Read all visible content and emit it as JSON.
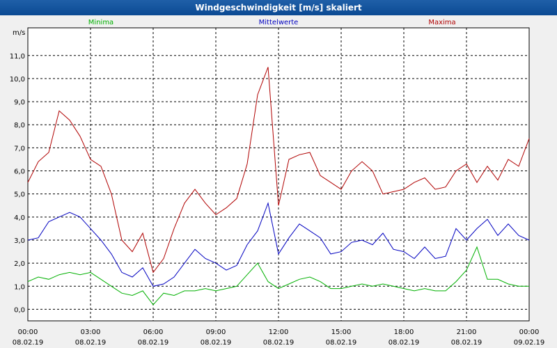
{
  "window": {
    "title": "Windgeschwindigkeit [m/s] skaliert"
  },
  "chart_data": {
    "type": "line",
    "title": "Windgeschwindigkeit [m/s] skaliert",
    "ylabel": "m/s",
    "ylim": [
      -0.5,
      12.2
    ],
    "xlim": [
      0,
      24
    ],
    "grid": true,
    "legend_position": "top",
    "y_ticks": [
      "0,0",
      "1,0",
      "2,0",
      "3,0",
      "4,0",
      "5,0",
      "6,0",
      "7,0",
      "8,0",
      "9,0",
      "10,0",
      "11,0"
    ],
    "x_ticks": [
      {
        "time": "00:00",
        "date": "08.02.19"
      },
      {
        "time": "03:00",
        "date": "08.02.19"
      },
      {
        "time": "06:00",
        "date": "08.02.19"
      },
      {
        "time": "09:00",
        "date": "08.02.19"
      },
      {
        "time": "12:00",
        "date": "08.02.19"
      },
      {
        "time": "15:00",
        "date": "08.02.19"
      },
      {
        "time": "18:00",
        "date": "08.02.19"
      },
      {
        "time": "21:00",
        "date": "08.02.19"
      },
      {
        "time": "00:00",
        "date": "09.02.19"
      }
    ],
    "series": [
      {
        "name": "Minima",
        "color": "#00b000",
        "x": [
          0,
          0.5,
          1,
          1.5,
          2,
          2.5,
          3,
          3.5,
          4,
          4.5,
          5,
          5.5,
          6,
          6.5,
          7,
          7.5,
          8,
          8.5,
          9,
          9.5,
          10,
          10.5,
          11,
          11.5,
          12,
          12.5,
          13,
          13.5,
          14,
          14.5,
          15,
          15.5,
          16,
          16.5,
          17,
          17.5,
          18,
          18.5,
          19,
          19.5,
          20,
          20.5,
          21,
          21.5,
          22,
          22.5,
          23,
          23.5,
          24
        ],
        "values": [
          1.2,
          1.4,
          1.3,
          1.5,
          1.6,
          1.5,
          1.6,
          1.3,
          1.0,
          0.7,
          0.6,
          0.8,
          0.2,
          0.7,
          0.6,
          0.8,
          0.8,
          0.9,
          0.8,
          0.9,
          1.0,
          1.5,
          2.0,
          1.2,
          0.9,
          1.1,
          1.3,
          1.4,
          1.2,
          0.9,
          0.9,
          1.0,
          1.1,
          1.0,
          1.1,
          1.0,
          0.9,
          0.8,
          0.9,
          0.8,
          0.8,
          1.2,
          1.7,
          2.7,
          1.3,
          1.3,
          1.1,
          1.0,
          1.0
        ]
      },
      {
        "name": "Mittelwerte",
        "color": "#0000c0",
        "x": [
          0,
          0.5,
          1,
          1.5,
          2,
          2.5,
          3,
          3.5,
          4,
          4.5,
          5,
          5.5,
          6,
          6.5,
          7,
          7.5,
          8,
          8.5,
          9,
          9.5,
          10,
          10.5,
          11,
          11.5,
          12,
          12.5,
          13,
          13.5,
          14,
          14.5,
          15,
          15.5,
          16,
          16.5,
          17,
          17.5,
          18,
          18.5,
          19,
          19.5,
          20,
          20.5,
          21,
          21.5,
          22,
          22.5,
          23,
          23.5,
          24
        ],
        "values": [
          3.0,
          3.1,
          3.8,
          4.0,
          4.2,
          4.0,
          3.5,
          3.0,
          2.4,
          1.6,
          1.4,
          1.8,
          1.0,
          1.1,
          1.4,
          2.0,
          2.6,
          2.2,
          2.0,
          1.7,
          1.9,
          2.8,
          3.4,
          4.6,
          2.4,
          3.1,
          3.7,
          3.4,
          3.1,
          2.4,
          2.5,
          2.9,
          3.0,
          2.8,
          3.3,
          2.6,
          2.5,
          2.2,
          2.7,
          2.2,
          2.3,
          3.5,
          3.0,
          3.5,
          3.9,
          3.2,
          3.7,
          3.2,
          3.0
        ]
      },
      {
        "name": "Maxima",
        "color": "#b00000",
        "x": [
          0,
          0.5,
          1,
          1.5,
          2,
          2.5,
          3,
          3.5,
          4,
          4.5,
          5,
          5.5,
          6,
          6.5,
          7,
          7.5,
          8,
          8.5,
          9,
          9.5,
          10,
          10.5,
          11,
          11.5,
          12,
          12.5,
          13,
          13.5,
          14,
          14.5,
          15,
          15.5,
          16,
          16.5,
          17,
          17.5,
          18,
          18.5,
          19,
          19.5,
          20,
          20.5,
          21,
          21.5,
          22,
          22.5,
          23,
          23.5,
          24
        ],
        "values": [
          5.5,
          6.4,
          6.8,
          8.6,
          8.2,
          7.5,
          6.5,
          6.2,
          5.0,
          3.0,
          2.5,
          3.3,
          1.6,
          2.2,
          3.5,
          4.6,
          5.2,
          4.6,
          4.1,
          4.4,
          4.8,
          6.3,
          9.3,
          10.5,
          4.5,
          6.5,
          6.7,
          6.8,
          5.8,
          5.5,
          5.2,
          6.0,
          6.4,
          6.0,
          5.0,
          5.1,
          5.2,
          5.5,
          5.7,
          5.2,
          5.3,
          6.0,
          6.3,
          5.5,
          6.2,
          5.6,
          6.5,
          6.2,
          7.4
        ]
      }
    ]
  }
}
